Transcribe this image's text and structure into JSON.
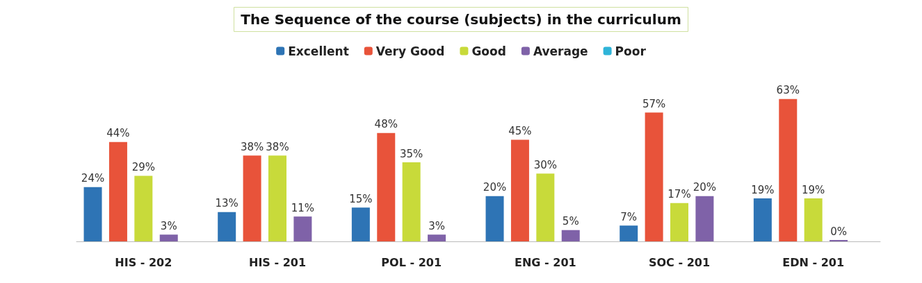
{
  "chart_data": {
    "type": "bar",
    "title": "The Sequence of the course (subjects) in the curriculum",
    "categories": [
      "HIS - 202",
      "HIS - 201",
      "POL - 201",
      "ENG - 201",
      "SOC - 201",
      "EDN - 201"
    ],
    "series": [
      {
        "name": "Excellent",
        "color": "#2e74b5",
        "values": [
          24,
          13,
          15,
          20,
          7,
          19
        ],
        "value_labels": [
          "24%",
          "13%",
          "15%",
          "20%",
          "7%",
          "19%"
        ]
      },
      {
        "name": "Very Good",
        "color": "#e8533a",
        "values": [
          44,
          38,
          48,
          45,
          57,
          63
        ],
        "value_labels": [
          "44%",
          "38%",
          "48%",
          "45%",
          "57%",
          "63%"
        ]
      },
      {
        "name": "Good",
        "color": "#c8da3a",
        "values": [
          29,
          38,
          35,
          30,
          17,
          19
        ],
        "value_labels": [
          "29%",
          "38%",
          "35%",
          "30%",
          "17%",
          "19%"
        ]
      },
      {
        "name": "Average",
        "color": "#7f62a8",
        "values": [
          3,
          11,
          3,
          5,
          20,
          0
        ],
        "value_labels": [
          "3%",
          "11%",
          "3%",
          "5%",
          "20%",
          "0%"
        ]
      },
      {
        "name": "Poor",
        "color": "#2fb4d8",
        "values": [
          null,
          null,
          null,
          null,
          null,
          null
        ],
        "value_labels": [
          null,
          null,
          null,
          null,
          null,
          null
        ]
      }
    ],
    "legend": "top",
    "tick_labels": "x"
  }
}
